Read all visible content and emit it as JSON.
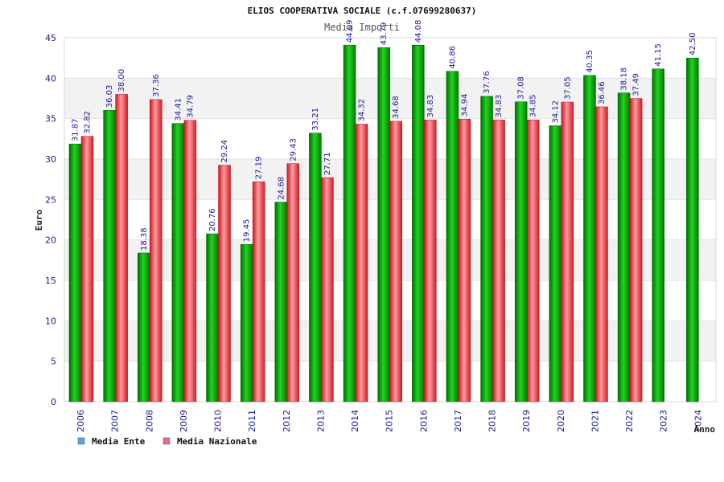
{
  "chart_data": {
    "type": "bar",
    "title": "ELIOS COOPERATIVA SOCIALE (c.f.07699280637)",
    "subtitle": "Media Importi",
    "ylabel": "Euro",
    "xlabel": "Anno",
    "ylim": [
      0,
      45
    ],
    "yticks": [
      0,
      5,
      10,
      15,
      20,
      25,
      30,
      35,
      40,
      45
    ],
    "grid": true,
    "legend_position": "bottom-left",
    "categories": [
      "2006",
      "2007",
      "2008",
      "2009",
      "2010",
      "2011",
      "2012",
      "2013",
      "2014",
      "2015",
      "2016",
      "2017",
      "2018",
      "2019",
      "2020",
      "2021",
      "2022",
      "2023",
      "2024"
    ],
    "series": [
      {
        "name": "Media Ente",
        "color": "#00aa00",
        "legend_color": "#5aa0e6",
        "values": [
          31.87,
          36.03,
          18.38,
          34.41,
          20.76,
          19.45,
          24.68,
          33.21,
          44.09,
          43.79,
          44.08,
          40.86,
          37.76,
          37.08,
          34.12,
          40.35,
          38.18,
          41.15,
          42.5
        ],
        "labels": [
          "31.87",
          "36.03",
          "18.38",
          "34.41",
          "20.76",
          "19.45",
          "24.68",
          "33.21",
          "44.09",
          "43.79",
          "44.08",
          "40.86",
          "37.76",
          "37.08",
          "34.12",
          "40.35",
          "38.18",
          "41.15",
          "42.50"
        ]
      },
      {
        "name": "Media Nazionale",
        "color": "#e8333a",
        "legend_color": "#e06aa0",
        "values": [
          32.82,
          38.0,
          37.36,
          34.79,
          29.24,
          27.19,
          29.43,
          27.71,
          34.32,
          34.68,
          34.83,
          34.94,
          34.83,
          34.85,
          37.05,
          36.46,
          37.49,
          null,
          null
        ],
        "labels": [
          "32.82",
          "38.00",
          "37.36",
          "34.79",
          "29.24",
          "27.19",
          "29.43",
          "27.71",
          "34.32",
          "34.68",
          "34.83",
          "34.94",
          "34.83",
          "34.85",
          "37.05",
          "36.46",
          "37.49",
          null,
          null
        ]
      }
    ]
  }
}
